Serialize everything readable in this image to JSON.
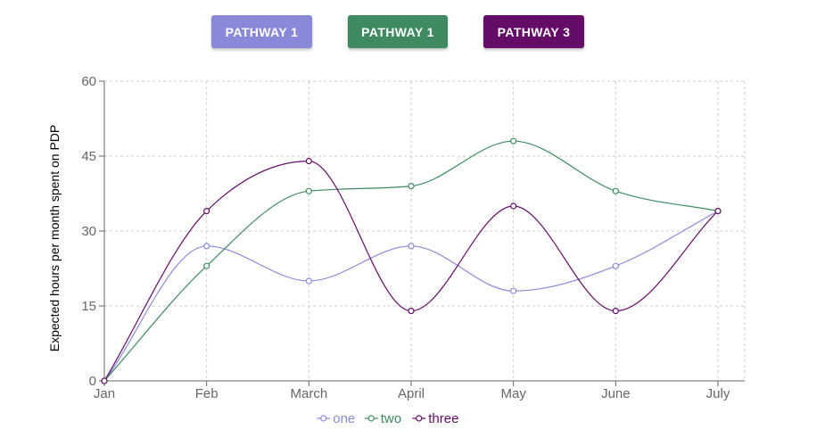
{
  "buttons": [
    {
      "label": "PATHWAY 1",
      "color": "#8a89d9"
    },
    {
      "label": "PATHWAY 1",
      "color": "#3f8a60"
    },
    {
      "label": "PATHWAY 3",
      "color": "#640c68"
    }
  ],
  "chart_data": {
    "type": "line",
    "categories": [
      "Jan",
      "Feb",
      "March",
      "April",
      "May",
      "June",
      "July"
    ],
    "ylabel": "Expected hours per month spent on PDP",
    "xlabel": "",
    "ylim": [
      0,
      60
    ],
    "yticks": [
      0,
      15,
      30,
      45,
      60
    ],
    "grid": true,
    "legend_position": "bottom",
    "series": [
      {
        "name": "one",
        "color": "#8a89d9",
        "values": [
          0,
          27,
          20,
          27,
          18,
          23,
          34
        ]
      },
      {
        "name": "two",
        "color": "#3f8a60",
        "values": [
          0,
          23,
          38,
          39,
          48,
          38,
          34
        ]
      },
      {
        "name": "three",
        "color": "#640c68",
        "values": [
          0,
          34,
          44,
          14,
          35,
          14,
          34
        ]
      }
    ]
  }
}
